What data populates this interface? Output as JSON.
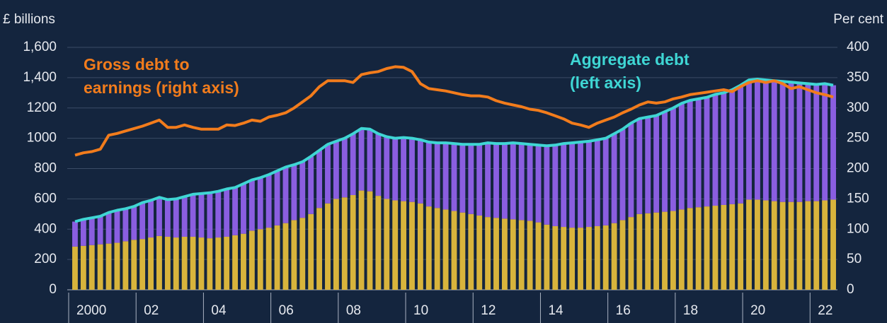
{
  "chart_data": {
    "type": "bar-line",
    "y_label": "£ billions",
    "y2_label": "Per cent",
    "categories": [
      "2000",
      null,
      null,
      null,
      null,
      null,
      null,
      null,
      "02",
      null,
      null,
      null,
      null,
      null,
      null,
      null,
      "04",
      null,
      null,
      null,
      null,
      null,
      null,
      null,
      "06",
      null,
      null,
      null,
      null,
      null,
      null,
      null,
      "08",
      null,
      null,
      null,
      null,
      null,
      null,
      null,
      "10",
      null,
      null,
      null,
      null,
      null,
      null,
      null,
      "12",
      null,
      null,
      null,
      null,
      null,
      null,
      null,
      "14",
      null,
      null,
      null,
      null,
      null,
      null,
      null,
      "16",
      null,
      null,
      null,
      null,
      null,
      null,
      null,
      "18",
      null,
      null,
      null,
      null,
      null,
      null,
      null,
      "20",
      null,
      null,
      null,
      null,
      null,
      null,
      null,
      "22",
      null,
      null
    ],
    "series": [
      {
        "kind": "bar",
        "color": "#d8b43c",
        "values": [
          285,
          290,
          295,
          300,
          305,
          310,
          320,
          330,
          335,
          345,
          355,
          350,
          345,
          350,
          350,
          345,
          340,
          345,
          350,
          360,
          370,
          390,
          400,
          410,
          425,
          440,
          460,
          475,
          500,
          540,
          570,
          600,
          610,
          625,
          655,
          650,
          620,
          600,
          590,
          585,
          580,
          570,
          550,
          540,
          530,
          520,
          510,
          500,
          490,
          480,
          475,
          470,
          465,
          460,
          455,
          445,
          430,
          420,
          415,
          410,
          410,
          415,
          420,
          425,
          440,
          460,
          480,
          500,
          505,
          510,
          515,
          520,
          530,
          540,
          545,
          550,
          555,
          560,
          565,
          570,
          595,
          595,
          590,
          585,
          580,
          580,
          580,
          585,
          585,
          590,
          595
        ]
      },
      {
        "kind": "bar",
        "color": "#8a5ee0",
        "values": [
          165,
          175,
          180,
          185,
          205,
          215,
          215,
          220,
          240,
          245,
          255,
          245,
          255,
          265,
          280,
          290,
          300,
          305,
          315,
          315,
          330,
          335,
          340,
          350,
          360,
          370,
          365,
          370,
          380,
          380,
          390,
          380,
          390,
          405,
          410,
          410,
          410,
          410,
          410,
          420,
          420,
          420,
          425,
          430,
          440,
          445,
          450,
          460,
          470,
          490,
          490,
          495,
          505,
          505,
          505,
          510,
          520,
          535,
          550,
          560,
          565,
          565,
          570,
          575,
          590,
          600,
          620,
          630,
          635,
          640,
          660,
          680,
          700,
          710,
          715,
          720,
          735,
          740,
          755,
          780,
          790,
          795,
          795,
          795,
          795,
          790,
          785,
          775,
          770,
          770,
          755
        ]
      },
      {
        "kind": "line",
        "name": [
          "Aggregate debt",
          "(left axis)"
        ],
        "color": "#3fd6d4",
        "values": [
          450,
          465,
          475,
          485,
          510,
          525,
          535,
          550,
          575,
          590,
          610,
          595,
          600,
          615,
          630,
          635,
          640,
          650,
          665,
          675,
          700,
          725,
          740,
          760,
          785,
          810,
          825,
          845,
          880,
          920,
          960,
          980,
          1000,
          1030,
          1065,
          1060,
          1030,
          1010,
          1000,
          1005,
          1000,
          990,
          975,
          970,
          970,
          965,
          960,
          960,
          960,
          970,
          965,
          965,
          970,
          965,
          960,
          955,
          950,
          955,
          965,
          970,
          975,
          980,
          990,
          1000,
          1030,
          1060,
          1100,
          1130,
          1140,
          1150,
          1175,
          1200,
          1230,
          1250,
          1260,
          1270,
          1290,
          1300,
          1320,
          1350,
          1385,
          1390,
          1385,
          1380,
          1375,
          1370,
          1365,
          1360,
          1355,
          1360,
          1350
        ]
      },
      {
        "kind": "line",
        "axis": "y2",
        "name": [
          "Gross debt to",
          "earnings (right axis)"
        ],
        "color": "#f27c1c",
        "values": [
          222,
          226,
          228,
          232,
          255,
          258,
          262,
          266,
          270,
          275,
          280,
          268,
          268,
          272,
          268,
          265,
          265,
          265,
          272,
          271,
          275,
          280,
          278,
          285,
          288,
          292,
          300,
          310,
          320,
          335,
          345,
          345,
          345,
          342,
          355,
          358,
          360,
          365,
          368,
          367,
          360,
          340,
          332,
          330,
          328,
          325,
          322,
          320,
          320,
          318,
          312,
          308,
          305,
          302,
          298,
          296,
          292,
          287,
          282,
          275,
          272,
          268,
          275,
          280,
          285,
          292,
          298,
          305,
          310,
          308,
          310,
          315,
          318,
          322,
          324,
          326,
          328,
          330,
          327,
          335,
          342,
          345,
          342,
          345,
          340,
          332,
          335,
          330,
          325,
          322,
          318
        ]
      }
    ],
    "ylim": [
      0,
      1600
    ],
    "yticks": [
      0,
      200,
      400,
      600,
      800,
      1000,
      1200,
      {
        "value": 1400,
        "label": "1,400"
      },
      {
        "value": 1600,
        "label": "1,600"
      }
    ],
    "y2lim": [
      0,
      400
    ],
    "y2ticks": [
      0,
      50,
      100,
      150,
      200,
      250,
      300,
      350,
      400
    ],
    "grid": true
  }
}
